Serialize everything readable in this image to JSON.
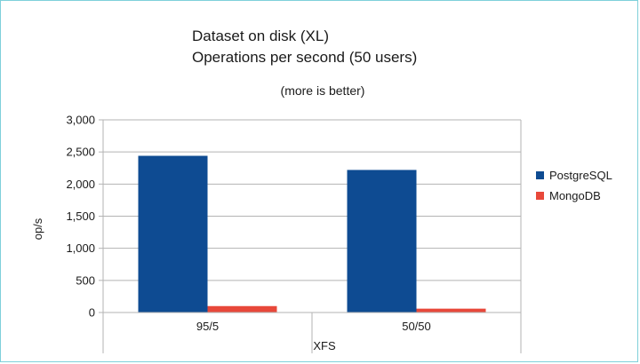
{
  "chart_data": {
    "type": "bar",
    "title_lines": [
      "Dataset on disk (XL)",
      "Operations per second (50 users)"
    ],
    "subtitle": "(more is better)",
    "xlabel": "XFS",
    "ylabel": "op/s",
    "categories": [
      "95/5",
      "50/50"
    ],
    "series": [
      {
        "name": "PostgreSQL",
        "color": "#0e4b92",
        "values": [
          2440,
          2220
        ]
      },
      {
        "name": "MongoDB",
        "color": "#e8483a",
        "values": [
          100,
          60
        ]
      }
    ],
    "ylim": [
      0,
      3000
    ],
    "yticks": [
      0,
      500,
      1000,
      1500,
      2000,
      2500,
      3000
    ],
    "ytick_labels": [
      "0",
      "500",
      "1,000",
      "1,500",
      "2,000",
      "2,500",
      "3,000"
    ],
    "grid": true,
    "legend_position": "right"
  }
}
